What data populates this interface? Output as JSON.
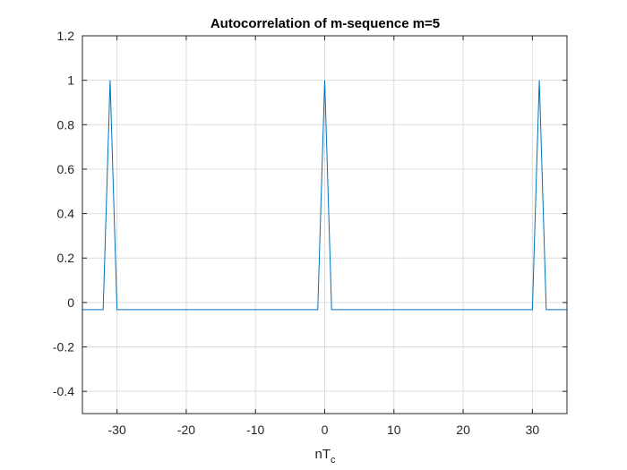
{
  "chart_data": {
    "type": "line",
    "title": "Autocorrelation of m-sequence m=5",
    "xlabel": {
      "main": "nT",
      "sub": "c"
    },
    "ylabel": "",
    "xlim": [
      -35,
      35
    ],
    "ylim": [
      -0.5,
      1.2
    ],
    "xticks": [
      -30,
      -20,
      -10,
      0,
      10,
      20,
      30
    ],
    "yticks": [
      -0.4,
      -0.2,
      0,
      0.2,
      0.4,
      0.6,
      0.8,
      1,
      1.2
    ],
    "grid": true,
    "series": [
      {
        "color": "#0072BD",
        "x": [
          -35,
          -32,
          -31,
          -30,
          -1,
          0,
          1,
          30,
          31,
          32,
          35
        ],
        "y": [
          -0.0323,
          -0.0323,
          1,
          -0.0323,
          -0.0323,
          1,
          -0.0323,
          -0.0323,
          1,
          -0.0323,
          -0.0323
        ]
      }
    ]
  }
}
